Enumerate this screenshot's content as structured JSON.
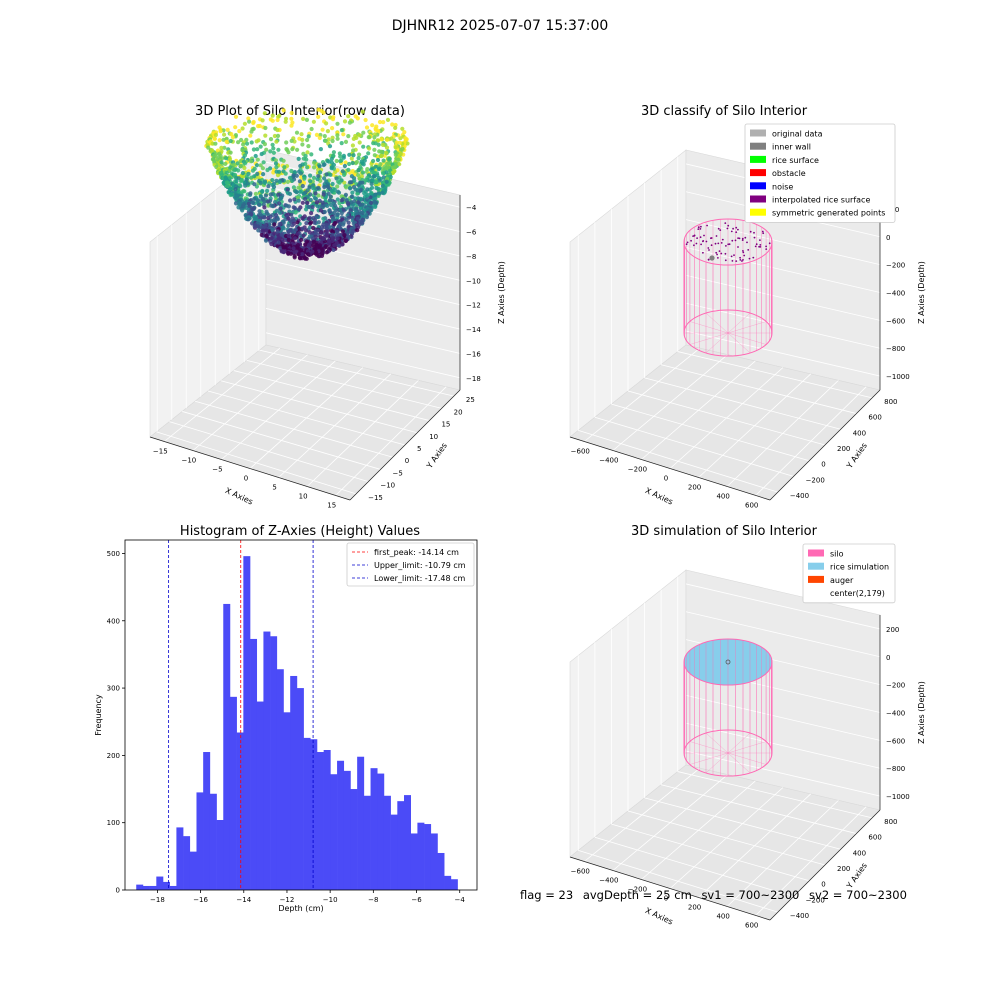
{
  "suptitle": "DJHNR12 2025-07-07 15:37:00",
  "colors": {
    "hist_bar": "#4B4BF7",
    "first_peak": "#ff0000",
    "limits": "#0000cc",
    "silo": "#ff69b4",
    "rice_simulation": "#87ceeb",
    "auger": "#ff4500",
    "original_data": "#b0b0b0",
    "inner_wall": "#808080",
    "rice_surface": "#00ff00",
    "obstacle": "#ff0000",
    "noise": "#0000ff",
    "interpolated_rice_surface": "#800080",
    "symmetric_generated_points": "#ffff00"
  },
  "chart_data": [
    {
      "type": "scatter",
      "title": "3D Plot of Silo Interior(row data)",
      "xlabel": "X Axies",
      "ylabel": "Y Axies",
      "zlabel": "Z Axies (Depth)",
      "xticks": [
        "−15",
        "−10",
        "−5",
        "0",
        "5",
        "10",
        "15"
      ],
      "yticks": [
        "−15",
        "−10",
        "−5",
        "0",
        "5",
        "10",
        "15",
        "20",
        "25"
      ],
      "zticks": [
        "−4",
        "−6",
        "−8",
        "−10",
        "−12",
        "−14",
        "−16",
        "−18"
      ],
      "xlim": [
        -17,
        17
      ],
      "ylim": [
        -16,
        26
      ],
      "zlim": [
        -19,
        -3.5
      ],
      "colormap": "viridis",
      "surface": "bowl shaped point cloud, deepest near z = -19 at center, rising to about -4 at the rim"
    },
    {
      "type": "scatter",
      "title": "3D classify of Silo Interior",
      "xlabel": "X Axies",
      "ylabel": "Y Axies",
      "zlabel": "Z Axies (Depth)",
      "xticks": [
        "−600",
        "−400",
        "−200",
        "0",
        "200",
        "400",
        "600"
      ],
      "yticks": [
        "−400",
        "−200",
        "0",
        "200",
        "400",
        "600",
        "800"
      ],
      "zticks": [
        "200",
        "0",
        "−200",
        "−400",
        "−600",
        "−800",
        "−1000"
      ],
      "legend": [
        {
          "label": "original data",
          "color": "#b0b0b0"
        },
        {
          "label": "inner wall",
          "color": "#808080"
        },
        {
          "label": "rice surface",
          "color": "#00ff00"
        },
        {
          "label": "obstacle",
          "color": "#ff0000"
        },
        {
          "label": "noise",
          "color": "#0000ff"
        },
        {
          "label": "interpolated rice surface",
          "color": "#800080"
        },
        {
          "label": "symmetric generated points",
          "color": "#ffff00"
        }
      ]
    },
    {
      "type": "bar",
      "title": "Histogram of Z-Axies (Height) Values",
      "xlabel": "Depth (cm)",
      "ylabel": "Frequency",
      "xlim": [
        -19.5,
        -3.2
      ],
      "ylim": [
        0,
        520
      ],
      "xticks": [
        -18,
        -16,
        -14,
        -12,
        -10,
        -8,
        -6,
        -4
      ],
      "yticks": [
        0,
        100,
        200,
        300,
        400,
        500
      ],
      "bin_start": -18.98,
      "bin_width": 0.31,
      "values": [
        8,
        6,
        6,
        20,
        12,
        6,
        93,
        80,
        57,
        145,
        205,
        143,
        104,
        425,
        287,
        234,
        496,
        373,
        280,
        384,
        377,
        328,
        264,
        318,
        300,
        226,
        224,
        205,
        208,
        172,
        192,
        177,
        150,
        198,
        140,
        181,
        173,
        140,
        112,
        132,
        141,
        84,
        100,
        98,
        84,
        55,
        21,
        16
      ],
      "lines": [
        {
          "label": "first_peak: -14.14 cm",
          "x": -14.14,
          "color": "#ff0000"
        },
        {
          "label": "Upper_limit: -10.79 cm",
          "x": -10.79,
          "color": "#0000cc"
        },
        {
          "label": "Lower_limit: -17.48 cm",
          "x": -17.48,
          "color": "#0000cc"
        }
      ]
    },
    {
      "type": "scatter",
      "title": "3D simulation of Silo Interior",
      "xlabel": "X Axies",
      "ylabel": "Y Axies",
      "zlabel": "Z Axies (Depth)",
      "xticks": [
        "−600",
        "−400",
        "−200",
        "0",
        "200",
        "400",
        "600"
      ],
      "yticks": [
        "−400",
        "−200",
        "0",
        "200",
        "400",
        "600",
        "800"
      ],
      "zticks": [
        "200",
        "0",
        "−200",
        "−400",
        "−600",
        "−800",
        "−1000"
      ],
      "legend": [
        {
          "label": "silo",
          "color": "#ff69b4"
        },
        {
          "label": "rice simulation",
          "color": "#87ceeb"
        },
        {
          "label": "auger",
          "color": "#ff4500"
        },
        {
          "label": "center(2,179)",
          "color": "#ffffff"
        }
      ]
    }
  ],
  "status": {
    "flag": "flag = 23",
    "avg_depth": "avgDepth = 25 cm",
    "sv1": "sv1 = 700~2300",
    "sv2": "sv2 = 700~2300"
  }
}
